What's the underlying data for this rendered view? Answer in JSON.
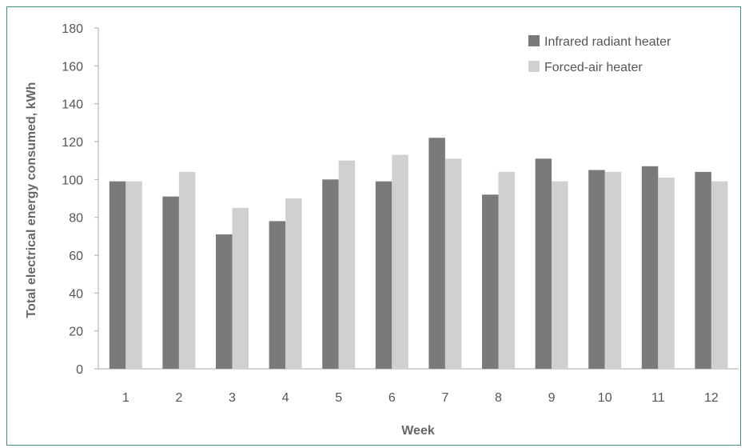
{
  "colors": {
    "frame": "#3f8b7f",
    "axis": "#aaaaaa",
    "series": [
      "#7a7a7a",
      "#d0d0d0"
    ]
  },
  "chart_data": {
    "type": "bar",
    "title": "",
    "xlabel": "Week",
    "ylabel": "Total electrical energy consumed, kWh",
    "categories": [
      "1",
      "2",
      "3",
      "4",
      "5",
      "6",
      "7",
      "8",
      "9",
      "10",
      "11",
      "12"
    ],
    "series": [
      {
        "name": "Infrared radiant heater",
        "values": [
          99,
          91,
          71,
          78,
          100,
          99,
          122,
          92,
          111,
          105,
          107,
          104
        ]
      },
      {
        "name": "Forced-air heater",
        "values": [
          99,
          104,
          85,
          90,
          110,
          113,
          111,
          104,
          99,
          104,
          101,
          99
        ]
      }
    ],
    "ylim": [
      0,
      180
    ],
    "yticks": [
      "0",
      "20",
      "40",
      "60",
      "80",
      "100",
      "120",
      "140",
      "160",
      "180"
    ],
    "grid": false,
    "legend": "top-right"
  }
}
